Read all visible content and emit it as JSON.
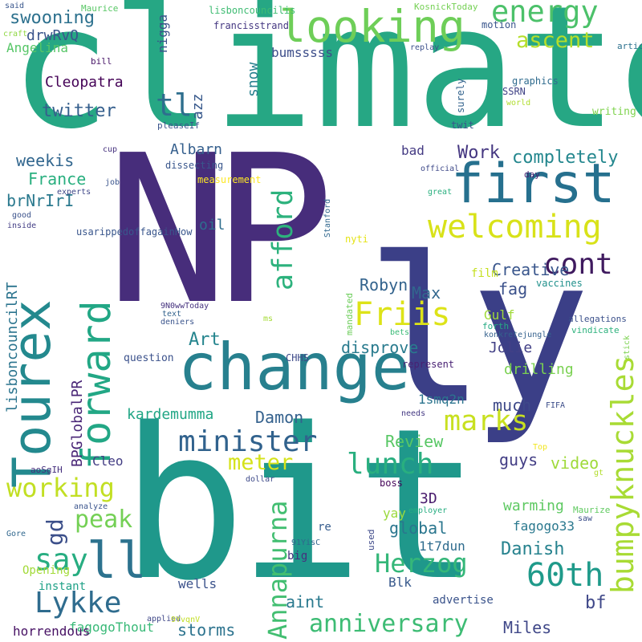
{
  "words": [
    {
      "text": "climate",
      "color": "#26a784"
    },
    {
      "text": "NP",
      "color": "#472d7b"
    },
    {
      "text": "ly",
      "color": "#3b3f87"
    },
    {
      "text": "bit",
      "color": "#1f988b"
    },
    {
      "text": "change",
      "color": "#27808e"
    },
    {
      "text": "first",
      "color": "#26708e"
    },
    {
      "text": "looking",
      "color": "#6ece58"
    },
    {
      "text": "energy",
      "color": "#4cc16a"
    },
    {
      "text": "ascent",
      "color": "#b5de2b"
    },
    {
      "text": "welcoming",
      "color": "#d8e219"
    },
    {
      "text": "cont",
      "color": "#3f1a5f"
    },
    {
      "text": "Friis",
      "color": "#dde318"
    },
    {
      "text": "marks",
      "color": "#c8e020"
    },
    {
      "text": "Lykke",
      "color": "#2f6c8e"
    },
    {
      "text": "60th",
      "color": "#1f9a8a"
    },
    {
      "text": "ll",
      "color": "#2c728e"
    },
    {
      "text": "minister",
      "color": "#31628d"
    },
    {
      "text": "lunch",
      "color": "#29af7f"
    },
    {
      "text": "meter",
      "color": "#d5e21a"
    },
    {
      "text": "working",
      "color": "#c2df23"
    },
    {
      "text": "say",
      "color": "#27ad81"
    },
    {
      "text": "peak",
      "color": "#74d055"
    },
    {
      "text": "Herzog",
      "color": "#35b779"
    },
    {
      "text": "anniversary",
      "color": "#3dbc74"
    },
    {
      "text": "Tourex",
      "color": "#23898e"
    },
    {
      "text": "forward",
      "color": "#22a785"
    },
    {
      "text": "bumpyknuckles",
      "color": "#a8db34"
    },
    {
      "text": "afford",
      "color": "#2db27d"
    },
    {
      "text": "Annapurna",
      "color": "#42be71"
    },
    {
      "text": "gd",
      "color": "#3c4f8a"
    },
    {
      "text": "tl",
      "color": "#2e6e8e"
    },
    {
      "text": "twitter",
      "color": "#355f8d"
    },
    {
      "text": "swooning",
      "color": "#2d718e"
    },
    {
      "text": "drwRvQ",
      "color": "#3a548c"
    },
    {
      "text": "Angelina",
      "color": "#56c667"
    },
    {
      "text": "Cleopatra",
      "color": "#440256"
    },
    {
      "text": "weekis",
      "color": "#31668e"
    },
    {
      "text": "France",
      "color": "#29af7f"
    },
    {
      "text": "brNrIrI",
      "color": "#2a798e"
    },
    {
      "text": "Art",
      "color": "#25858e"
    },
    {
      "text": "Work",
      "color": "#453781"
    },
    {
      "text": "completely",
      "color": "#24878e"
    },
    {
      "text": "Creative",
      "color": "#39568c"
    },
    {
      "text": "fag",
      "color": "#3b518b"
    },
    {
      "text": "Robyn",
      "color": "#33638d"
    },
    {
      "text": "Max",
      "color": "#31678e"
    },
    {
      "text": "disprove",
      "color": "#297b8e"
    },
    {
      "text": "Jolie",
      "color": "#424086"
    },
    {
      "text": "Damon",
      "color": "#34618d"
    },
    {
      "text": "kardemumma",
      "color": "#21a685"
    },
    {
      "text": "much",
      "color": "#3e4989"
    },
    {
      "text": "Review",
      "color": "#58c765"
    },
    {
      "text": "guys",
      "color": "#433e85"
    },
    {
      "text": "video",
      "color": "#9fda3a"
    },
    {
      "text": "global",
      "color": "#2a768e"
    },
    {
      "text": "Danish",
      "color": "#26828e"
    },
    {
      "text": "aint",
      "color": "#29798e"
    },
    {
      "text": "bf",
      "color": "#3f4889"
    },
    {
      "text": "Miles",
      "color": "#3f4788"
    },
    {
      "text": "storms",
      "color": "#2c738e"
    },
    {
      "text": "fagogoThout",
      "color": "#38b977"
    },
    {
      "text": "warming",
      "color": "#5ec962"
    },
    {
      "text": "fagogo33",
      "color": "#2a788e"
    },
    {
      "text": "1t7dun",
      "color": "#2f6c8e"
    },
    {
      "text": "yay",
      "color": "#9bd93c"
    },
    {
      "text": "3D",
      "color": "#481a6c"
    },
    {
      "text": "1smq2n",
      "color": "#2b748e"
    },
    {
      "text": "drilling",
      "color": "#7ad151"
    },
    {
      "text": "Gulf",
      "color": "#a0da39"
    },
    {
      "text": "film",
      "color": "#c5e021"
    },
    {
      "text": "oil",
      "color": "#2e6d8e"
    },
    {
      "text": "bad",
      "color": "#443a83"
    },
    {
      "text": "Cleo",
      "color": "#433d84"
    },
    {
      "text": "wells",
      "color": "#3b528b"
    },
    {
      "text": "big",
      "color": "#46307e"
    },
    {
      "text": "Blk",
      "color": "#38598c"
    },
    {
      "text": "instant",
      "color": "#1fa187"
    },
    {
      "text": "Opening",
      "color": "#a2da37"
    },
    {
      "text": "horrendous",
      "color": "#471164"
    },
    {
      "text": "advertise",
      "color": "#3a538b"
    },
    {
      "text": "re",
      "color": "#365c8d"
    },
    {
      "text": "nigga",
      "color": "#3b528b"
    },
    {
      "text": "azz",
      "color": "#38598c"
    },
    {
      "text": "snow",
      "color": "#27808e"
    },
    {
      "text": "bumsssss",
      "color": "#3d4e8a"
    },
    {
      "text": "Albarn",
      "color": "#355f8d"
    },
    {
      "text": "BPGlobalPR",
      "color": "#482576"
    },
    {
      "text": "lisboncouncilRT",
      "color": "#2b748e"
    },
    {
      "text": "lisboncouncilis",
      "color": "#3fbc73"
    },
    {
      "text": "francisstrand",
      "color": "#453882"
    },
    {
      "text": "motion",
      "color": "#39558c"
    },
    {
      "text": "replay",
      "color": "#3c508b"
    },
    {
      "text": "graphics",
      "color": "#2f6b8e"
    },
    {
      "text": "SSRN",
      "color": "#414487"
    },
    {
      "text": "world",
      "color": "#b0dd2f"
    },
    {
      "text": "surely",
      "color": "#33638d"
    },
    {
      "text": "writing",
      "color": "#7fd34e"
    },
    {
      "text": "twit",
      "color": "#39558c"
    },
    {
      "text": "pleaseIf",
      "color": "#3a548c"
    },
    {
      "text": "cup",
      "color": "#46327e"
    },
    {
      "text": "dissecting",
      "color": "#39568c"
    },
    {
      "text": "measurement",
      "color": "#fde725"
    },
    {
      "text": "official",
      "color": "#3e4989"
    },
    {
      "text": "day",
      "color": "#481f70"
    },
    {
      "text": "great",
      "color": "#2ab07f"
    },
    {
      "text": "Stanford",
      "color": "#31688e"
    },
    {
      "text": "nyti",
      "color": "#e5e419"
    },
    {
      "text": "vaccines",
      "color": "#21918c"
    },
    {
      "text": "forth",
      "color": "#24aa83"
    },
    {
      "text": "konkretejungle",
      "color": "#34618d"
    },
    {
      "text": "allegations",
      "color": "#3b518b"
    },
    {
      "text": "vindicate",
      "color": "#2db27d"
    },
    {
      "text": "stick",
      "color": "#7cd250"
    },
    {
      "text": "bets",
      "color": "#3aba76"
    },
    {
      "text": "mandated",
      "color": "#6ccd5a"
    },
    {
      "text": "9N0wwToday",
      "color": "#46337f"
    },
    {
      "text": "text",
      "color": "#33638d"
    },
    {
      "text": "deniers",
      "color": "#3a548c"
    },
    {
      "text": "ms",
      "color": "#a5db36"
    },
    {
      "text": "question",
      "color": "#3b518b"
    },
    {
      "text": "CHHS",
      "color": "#3e4a89"
    },
    {
      "text": "represent",
      "color": "#482173"
    },
    {
      "text": "needs",
      "color": "#443983"
    },
    {
      "text": "FIFA",
      "color": "#3d4e8a"
    },
    {
      "text": "Top",
      "color": "#f1e51d"
    },
    {
      "text": "gt",
      "color": "#b2dd2d"
    },
    {
      "text": "Maurize",
      "color": "#60ca60"
    },
    {
      "text": "saw",
      "color": "#3c4f8a"
    },
    {
      "text": "dollar",
      "color": "#3e4a89"
    },
    {
      "text": "boss",
      "color": "#450559"
    },
    {
      "text": "employer",
      "color": "#26ad81"
    },
    {
      "text": "used",
      "color": "#3e4989"
    },
    {
      "text": "91YisC",
      "color": "#31668e"
    },
    {
      "text": "aoSgIH",
      "color": "#46307e"
    },
    {
      "text": "analyze",
      "color": "#3a548c"
    },
    {
      "text": "Gore",
      "color": "#31688e"
    },
    {
      "text": "applied",
      "color": "#3f4788"
    },
    {
      "text": "9YvqnV",
      "color": "#c2df23"
    },
    {
      "text": "said",
      "color": "#39568c"
    },
    {
      "text": "Maurice",
      "color": "#58c765"
    },
    {
      "text": "KosnickToday",
      "color": "#75d054"
    },
    {
      "text": "craft",
      "color": "#8fd744"
    },
    {
      "text": "article",
      "color": "#2c718e"
    },
    {
      "text": "bill",
      "color": "#481668"
    },
    {
      "text": "job",
      "color": "#3a548c"
    },
    {
      "text": "experts",
      "color": "#3f4788"
    },
    {
      "text": "good",
      "color": "#3b528b"
    },
    {
      "text": "inside",
      "color": "#433e85"
    },
    {
      "text": "usarippedoffagainHow",
      "color": "#39568c"
    },
    {
      "text": "H1N1",
      "color": "#46327e"
    },
    {
      "text": "kiss",
      "color": "#3a538b"
    }
  ]
}
